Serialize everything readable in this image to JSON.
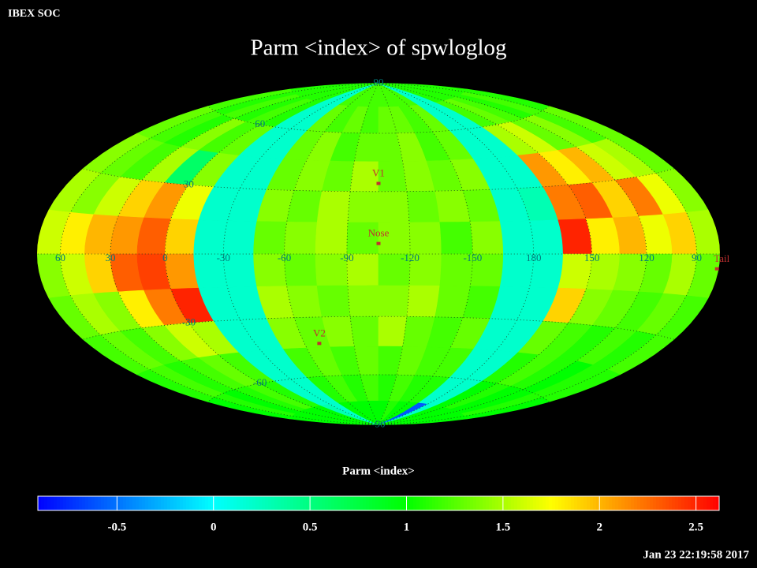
{
  "chart_data": {
    "type": "skymap",
    "header": "IBEX SOC",
    "title": "Parm  <index> of spwloglog",
    "colorbar_label": "Parm  <index>",
    "timestamp": "Jan 23 22:19:58 2017",
    "center_lon": -105,
    "lon_ticks": [
      60,
      30,
      0,
      -30,
      -60,
      -90,
      -120,
      -150,
      180,
      150,
      120,
      90
    ],
    "lat_ticks": [
      90,
      60,
      30,
      -30,
      -60,
      -90
    ],
    "lat_edges": [
      90,
      75,
      60,
      45,
      30,
      15,
      0,
      -15,
      -30,
      -45,
      -60,
      -75,
      -90
    ],
    "lon_edges": [
      75,
      60,
      45,
      30,
      15,
      0,
      -15,
      -30,
      -45,
      -60,
      -75,
      -90,
      -105,
      -120,
      -135,
      -150,
      -165,
      -180,
      -195,
      -210,
      -225,
      -240,
      -255,
      -270,
      -285
    ],
    "values": [
      [
        1.1,
        1.1,
        1.1,
        1.1,
        1.1,
        1.1,
        0.2,
        0.2,
        1.2,
        1.2,
        1.2,
        1.2,
        1.2,
        1.2,
        1.2,
        1.2,
        0.2,
        0.2,
        1.1,
        1.1,
        1.1,
        1.1,
        1.1,
        1.1
      ],
      [
        1.2,
        1.1,
        1.2,
        1.1,
        1.2,
        1.1,
        0.2,
        0.2,
        1.3,
        1.2,
        1.3,
        1.2,
        1.3,
        1.3,
        1.2,
        1.3,
        0.2,
        0.2,
        1.2,
        1.3,
        1.2,
        1.1,
        1.2,
        1.1
      ],
      [
        1.3,
        1.2,
        1.1,
        1.4,
        1.2,
        1.3,
        0.2,
        0.2,
        1.3,
        1.4,
        1.2,
        1.3,
        1.3,
        1.4,
        1.2,
        1.3,
        0.2,
        0.2,
        1.5,
        1.6,
        1.3,
        1.4,
        1.2,
        1.3
      ],
      [
        1.4,
        1.3,
        1.2,
        1.5,
        0.6,
        1.4,
        0.2,
        0.2,
        1.3,
        1.4,
        1.3,
        1.5,
        1.3,
        1.4,
        1.3,
        1.4,
        0.2,
        0.2,
        2.1,
        1.8,
        2.0,
        1.6,
        1.5,
        1.3
      ],
      [
        1.5,
        1.4,
        1.6,
        1.9,
        2.1,
        1.7,
        0.2,
        0.2,
        1.4,
        1.3,
        1.5,
        1.4,
        1.4,
        1.3,
        1.4,
        1.3,
        0.2,
        0.3,
        2.2,
        2.3,
        1.9,
        2.2,
        1.7,
        1.4
      ],
      [
        1.6,
        1.8,
        2.0,
        2.1,
        2.3,
        1.9,
        0.2,
        0.2,
        1.3,
        1.4,
        1.5,
        1.3,
        1.4,
        1.4,
        1.2,
        1.4,
        0.2,
        0.2,
        2.5,
        1.8,
        2.0,
        1.7,
        1.9,
        1.5
      ],
      [
        1.4,
        1.6,
        1.9,
        2.3,
        2.4,
        2.1,
        0.2,
        0.2,
        1.4,
        1.3,
        1.4,
        1.5,
        1.3,
        1.4,
        1.3,
        1.3,
        0.2,
        0.2,
        1.6,
        1.5,
        1.4,
        1.3,
        1.5,
        1.3
      ],
      [
        1.3,
        1.5,
        1.4,
        1.8,
        2.2,
        2.5,
        0.2,
        0.2,
        1.5,
        1.4,
        1.3,
        1.4,
        1.4,
        1.5,
        1.3,
        1.2,
        0.2,
        0.2,
        1.9,
        1.4,
        1.3,
        1.2,
        1.3,
        1.2
      ],
      [
        1.2,
        1.3,
        1.2,
        1.4,
        1.6,
        1.5,
        0.2,
        0.2,
        1.4,
        1.3,
        1.4,
        1.3,
        1.5,
        1.3,
        1.2,
        1.3,
        0.2,
        0.2,
        1.3,
        1.2,
        1.1,
        1.2,
        1.1,
        1.2
      ],
      [
        1.1,
        1.2,
        1.1,
        1.2,
        1.3,
        1.2,
        0.2,
        0.2,
        1.2,
        1.3,
        1.2,
        1.3,
        1.2,
        1.3,
        1.2,
        1.2,
        0.2,
        0.2,
        1.1,
        1.2,
        1.1,
        1.0,
        1.1,
        1.1
      ],
      [
        1.0,
        1.1,
        1.0,
        1.1,
        1.2,
        1.1,
        0.2,
        0.2,
        1.1,
        1.2,
        1.1,
        1.2,
        1.1,
        1.2,
        1.1,
        1.1,
        0.2,
        0.2,
        1.0,
        1.1,
        1.0,
        1.0,
        1.1,
        1.0
      ],
      [
        1.0,
        1.0,
        1.0,
        1.0,
        1.0,
        1.0,
        0.3,
        0.2,
        1.0,
        1.0,
        1.0,
        1.0,
        1.0,
        1.1,
        1.0,
        1.0,
        -0.6,
        0.2,
        1.0,
        1.0,
        1.0,
        1.0,
        1.0,
        1.0
      ]
    ],
    "markers": [
      {
        "label": "V1",
        "lon": -105,
        "lat": 34
      },
      {
        "label": "Nose",
        "lon": -105,
        "lat": 5
      },
      {
        "label": "V2",
        "lon": -69,
        "lat": -43
      },
      {
        "label": "Tail",
        "lon": 76,
        "lat": -5
      }
    ],
    "marker_color": "#c03030",
    "grid_label_color": "#007a7a",
    "clim": [
      -0.91,
      2.62
    ],
    "cticks": [
      -0.5,
      0,
      0.5,
      1,
      1.5,
      2,
      2.5
    ],
    "colormap": [
      {
        "value": -0.91,
        "color": "#0000ff"
      },
      {
        "value": 0,
        "color": "#00ffff"
      },
      {
        "value": 1,
        "color": "#00ff00"
      },
      {
        "value": 1.75,
        "color": "#ffff00"
      },
      {
        "value": 2.62,
        "color": "#ff0000"
      }
    ]
  }
}
